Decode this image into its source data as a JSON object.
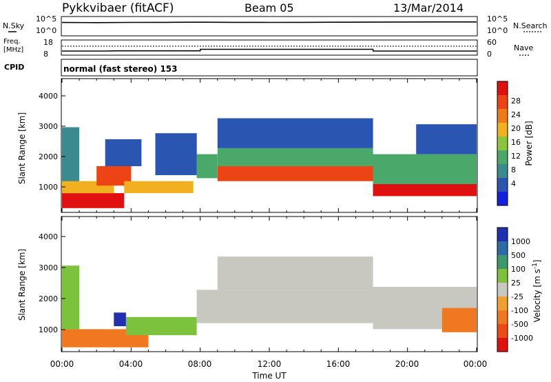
{
  "header": {
    "title": "Pykkvibaer (fitACF)",
    "beam": "Beam 05",
    "date": "13/Mar/2014"
  },
  "strip_panels": {
    "nsky_label": "N.Sky",
    "nsearch_label": "N.Search",
    "nsky_ticks": [
      "10^5",
      "10^0"
    ],
    "nsearch_ticks": [
      "10^5",
      "10^0"
    ],
    "freq_label_1": "Freq.",
    "freq_label_2": "[MHz]",
    "freq_ticks": [
      "18",
      "8"
    ],
    "nave_label": "Nave",
    "nave_ticks": [
      "60",
      "0"
    ],
    "cpid_label": "CPID",
    "cpid_text": "normal (fast stereo) 153"
  },
  "axes": {
    "ylabel": "Slant Range [km]",
    "y_ticks": [
      "1000",
      "2000",
      "3000",
      "4000"
    ],
    "x_ticks": [
      "00:00",
      "04:00",
      "08:00",
      "12:00",
      "16:00",
      "20:00",
      "00:00"
    ],
    "xlabel": "Time UT"
  },
  "colorbars": {
    "power": {
      "label": "Power [dB]",
      "ticks": [
        "4",
        "8",
        "12",
        "16",
        "20",
        "24",
        "28"
      ],
      "colors": [
        "#1420e0",
        "#2a55b0",
        "#3a8a90",
        "#4aa86a",
        "#8cc43c",
        "#f0b020",
        "#f07a18",
        "#ec4414",
        "#e01010"
      ]
    },
    "velocity": {
      "label": "Velocity [m s^-1]",
      "ticks": [
        "1000",
        "500",
        "100",
        "25",
        "-25",
        "-100",
        "-500",
        "-1000"
      ],
      "colors": [
        "#2030b0",
        "#2c6aa8",
        "#3c9a6a",
        "#7cc23c",
        "#c8c8c0",
        "#f0a030",
        "#f07820",
        "#ee4a18",
        "#e01010"
      ]
    }
  },
  "chart_data": [
    {
      "type": "line",
      "title": "N.Sky / N.Search",
      "x": [
        0,
        2,
        4,
        6,
        8,
        10,
        12,
        14,
        16,
        18,
        20,
        22,
        24
      ],
      "series": [
        {
          "name": "N.Sky",
          "values": [
            9000,
            8000,
            9500,
            10000,
            11000,
            10000,
            9500,
            10000,
            11000,
            12000,
            13000,
            14000,
            14000
          ]
        },
        {
          "name": "N.Search",
          "values": [
            9000,
            8000,
            9500,
            10000,
            11000,
            10000,
            9500,
            10000,
            11000,
            12000,
            13000,
            14000,
            14000
          ]
        }
      ],
      "ylim": [
        1,
        100000
      ],
      "ylog": true
    },
    {
      "type": "line",
      "title": "Freq. / Nave",
      "x": [
        0,
        2.5,
        3.2,
        8.0,
        8.01,
        18.0,
        18.01,
        24
      ],
      "series": [
        {
          "name": "Freq.",
          "values": [
            10.2,
            10.2,
            10.4,
            10.4,
            11.6,
            11.6,
            10.2,
            10.2
          ]
        },
        {
          "name": "Nave",
          "values": [
            33,
            33,
            33,
            33,
            33,
            33,
            33,
            33
          ]
        }
      ],
      "ylim": [
        8,
        18
      ]
    },
    {
      "type": "heatmap",
      "title": "Power",
      "x_unit": "hours UT",
      "y_unit": "km",
      "xlim": [
        0,
        24
      ],
      "ylim": [
        180,
        4600
      ],
      "colorbar_ticks": [
        4,
        8,
        12,
        16,
        20,
        24,
        28
      ],
      "cells": [
        {
          "t0": 0.0,
          "t1": 3.6,
          "r0": 300,
          "r1": 800,
          "lvl": 8
        },
        {
          "t0": 0.0,
          "t1": 1.0,
          "r0": 800,
          "r1": 3000,
          "lvl": 2
        },
        {
          "t0": 0.0,
          "t1": 3.0,
          "r0": 800,
          "r1": 1200,
          "lvl": 5
        },
        {
          "t0": 2.0,
          "t1": 4.0,
          "r0": 1050,
          "r1": 1700,
          "lvl": 7
        },
        {
          "t0": 2.5,
          "t1": 4.6,
          "r0": 1700,
          "r1": 2600,
          "lvl": 1
        },
        {
          "t0": 3.6,
          "t1": 7.6,
          "r0": 800,
          "r1": 1200,
          "lvl": 5
        },
        {
          "t0": 5.4,
          "t1": 7.8,
          "r0": 1400,
          "r1": 2800,
          "lvl": 1
        },
        {
          "t0": 7.8,
          "t1": 9.0,
          "r0": 1300,
          "r1": 2100,
          "lvl": 3
        },
        {
          "t0": 9.0,
          "t1": 18.0,
          "r0": 1200,
          "r1": 1700,
          "lvl": 7
        },
        {
          "t0": 9.0,
          "t1": 18.0,
          "r0": 1700,
          "r1": 2300,
          "lvl": 3
        },
        {
          "t0": 9.0,
          "t1": 18.0,
          "r0": 2300,
          "r1": 3300,
          "lvl": 1
        },
        {
          "t0": 18.0,
          "t1": 24.0,
          "r0": 700,
          "r1": 1100,
          "lvl": 8
        },
        {
          "t0": 18.0,
          "t1": 24.0,
          "r0": 1100,
          "r1": 2100,
          "lvl": 3
        },
        {
          "t0": 20.5,
          "t1": 24.0,
          "r0": 2100,
          "r1": 3100,
          "lvl": 1
        }
      ]
    },
    {
      "type": "heatmap",
      "title": "Velocity",
      "x_unit": "hours UT",
      "y_unit": "km",
      "xlim": [
        0,
        24
      ],
      "ylim": [
        180,
        4600
      ],
      "colorbar_ticks": [
        1000,
        500,
        100,
        25,
        -25,
        -100,
        -500,
        -1000
      ],
      "cells": [
        {
          "t0": 0.0,
          "t1": 5.0,
          "r0": 300,
          "r1": 900,
          "lvl": 6
        },
        {
          "t0": 0.0,
          "t1": 1.0,
          "r0": 900,
          "r1": 3000,
          "lvl": 3
        },
        {
          "t0": 3.0,
          "t1": 3.7,
          "r0": 1000,
          "r1": 1450,
          "lvl": 0
        },
        {
          "t0": 3.7,
          "t1": 7.8,
          "r0": 700,
          "r1": 1300,
          "lvl": 3
        },
        {
          "t0": 7.8,
          "t1": 18.0,
          "r0": 1100,
          "r1": 2200,
          "lvl": 4
        },
        {
          "t0": 9.0,
          "t1": 18.0,
          "r0": 2200,
          "r1": 3300,
          "lvl": 4
        },
        {
          "t0": 18.0,
          "t1": 24.0,
          "r0": 900,
          "r1": 2300,
          "lvl": 4
        },
        {
          "t0": 22.0,
          "t1": 24.0,
          "r0": 800,
          "r1": 1600,
          "lvl": 6
        }
      ]
    }
  ]
}
